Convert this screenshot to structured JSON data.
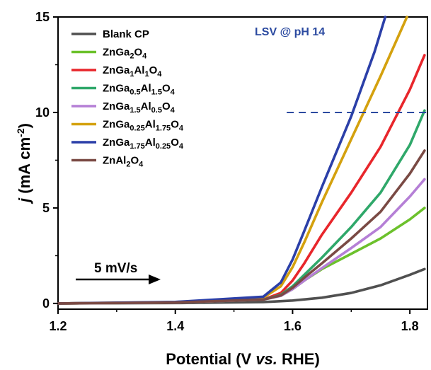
{
  "chart_data": {
    "type": "line",
    "title": "",
    "xlabel": {
      "pre": "Potential (V ",
      "italic": "vs.",
      "post": " RHE)"
    },
    "ylabel": {
      "italic": "j",
      "main": " (mA cm",
      "sup": "-2",
      "close": ")"
    },
    "xlim": [
      1.2,
      1.83
    ],
    "ylim": [
      -0.3,
      15
    ],
    "xticks": [
      1.2,
      1.4,
      1.6,
      1.8
    ],
    "xtick_labels": [
      "1.2",
      "1.4",
      "1.6",
      "1.8"
    ],
    "yticks": [
      0,
      5,
      10,
      15
    ],
    "ytick_labels": [
      "0",
      "5",
      "10",
      "15"
    ],
    "grid": false,
    "legend_position": "top-left",
    "annotation": "LSV @ pH 14",
    "annotation_color": "#2b4aa0",
    "scan_rate_label": "5 mV/s",
    "reference_line": {
      "y": 10,
      "x_from": 1.59,
      "x_to": 1.83,
      "color": "#2b4aa0",
      "style": "dashed"
    },
    "series": [
      {
        "name": "Blank CP",
        "legend": [
          [
            "Blank CP",
            null
          ]
        ],
        "color": "#505050",
        "x": [
          1.2,
          1.4,
          1.55,
          1.6,
          1.65,
          1.7,
          1.75,
          1.8,
          1.825
        ],
        "y": [
          0,
          0.02,
          0.07,
          0.15,
          0.3,
          0.55,
          0.95,
          1.5,
          1.8
        ]
      },
      {
        "name": "ZnGa2O4",
        "legend": [
          [
            "ZnGa",
            null
          ],
          [
            "2",
            "sub"
          ],
          [
            "O",
            null
          ],
          [
            "4",
            "sub"
          ]
        ],
        "color": "#6cc12c",
        "x": [
          1.2,
          1.4,
          1.55,
          1.58,
          1.6,
          1.62,
          1.65,
          1.7,
          1.75,
          1.8,
          1.825
        ],
        "y": [
          0,
          0.05,
          0.2,
          0.4,
          0.75,
          1.2,
          1.8,
          2.6,
          3.4,
          4.4,
          5.0
        ]
      },
      {
        "name": "ZnGa1Al1O4",
        "legend": [
          [
            "ZnGa",
            null
          ],
          [
            "1",
            "sub"
          ],
          [
            "Al",
            null
          ],
          [
            "1",
            "sub"
          ],
          [
            "O",
            null
          ],
          [
            "4",
            "sub"
          ]
        ],
        "color": "#e8262b",
        "x": [
          1.2,
          1.4,
          1.55,
          1.58,
          1.6,
          1.62,
          1.65,
          1.7,
          1.75,
          1.8,
          1.825
        ],
        "y": [
          0,
          0.05,
          0.2,
          0.55,
          1.2,
          2.1,
          3.6,
          5.8,
          8.2,
          11.2,
          13.0
        ]
      },
      {
        "name": "ZnGa0.5Al1.5O4",
        "legend": [
          [
            "ZnGa",
            null
          ],
          [
            "0.5",
            "sub"
          ],
          [
            "Al",
            null
          ],
          [
            "1.5",
            "sub"
          ],
          [
            "O",
            null
          ],
          [
            "4",
            "sub"
          ]
        ],
        "color": "#2fa86a",
        "x": [
          1.2,
          1.4,
          1.55,
          1.58,
          1.6,
          1.62,
          1.65,
          1.7,
          1.75,
          1.8,
          1.825
        ],
        "y": [
          0,
          0.05,
          0.2,
          0.45,
          0.9,
          1.5,
          2.4,
          4.0,
          5.8,
          8.3,
          10.1
        ]
      },
      {
        "name": "ZnGa1.5Al0.5O4",
        "legend": [
          [
            "ZnGa",
            null
          ],
          [
            "1.5",
            "sub"
          ],
          [
            "Al",
            null
          ],
          [
            "0.5",
            "sub"
          ],
          [
            "O",
            null
          ],
          [
            "4",
            "sub"
          ]
        ],
        "color": "#b57fd6",
        "x": [
          1.2,
          1.4,
          1.55,
          1.58,
          1.6,
          1.62,
          1.65,
          1.7,
          1.75,
          1.8,
          1.825
        ],
        "y": [
          0,
          0.05,
          0.2,
          0.4,
          0.75,
          1.2,
          1.85,
          2.9,
          4.0,
          5.6,
          6.5
        ]
      },
      {
        "name": "ZnGa0.25Al1.75O4",
        "legend": [
          [
            "ZnGa",
            null
          ],
          [
            "0.25",
            "sub"
          ],
          [
            "Al",
            null
          ],
          [
            "1.75",
            "sub"
          ],
          [
            "O",
            null
          ],
          [
            "4",
            "sub"
          ]
        ],
        "color": "#d4a10e",
        "x": [
          1.2,
          1.4,
          1.55,
          1.58,
          1.6,
          1.62,
          1.65,
          1.7,
          1.75,
          1.795
        ],
        "y": [
          0,
          0.07,
          0.3,
          0.9,
          1.9,
          3.2,
          5.3,
          8.6,
          11.9,
          15.0
        ]
      },
      {
        "name": "ZnGa1.75Al0.25O4",
        "legend": [
          [
            "ZnGa",
            null
          ],
          [
            "1.75",
            "sub"
          ],
          [
            "Al",
            null
          ],
          [
            "0.25",
            "sub"
          ],
          [
            "O",
            null
          ],
          [
            "4",
            "sub"
          ]
        ],
        "color": "#2b3fa8",
        "x": [
          1.2,
          1.4,
          1.55,
          1.58,
          1.6,
          1.62,
          1.65,
          1.7,
          1.74,
          1.758
        ],
        "y": [
          0,
          0.08,
          0.35,
          1.1,
          2.3,
          3.8,
          6.1,
          9.8,
          13.2,
          15.0
        ]
      },
      {
        "name": "ZnAl2O4",
        "legend": [
          [
            "ZnAl",
            null
          ],
          [
            "2",
            "sub"
          ],
          [
            "O",
            null
          ],
          [
            "4",
            "sub"
          ]
        ],
        "color": "#7a4a44",
        "x": [
          1.2,
          1.4,
          1.55,
          1.58,
          1.6,
          1.62,
          1.65,
          1.7,
          1.75,
          1.8,
          1.825
        ],
        "y": [
          0,
          0.05,
          0.2,
          0.42,
          0.82,
          1.35,
          2.1,
          3.4,
          4.8,
          6.8,
          8.0
        ]
      }
    ]
  }
}
